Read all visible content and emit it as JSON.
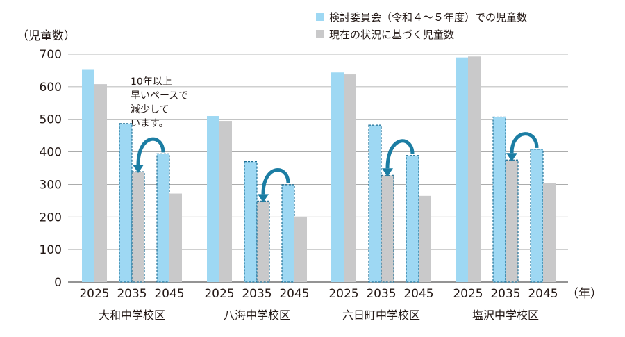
{
  "chart_data": {
    "type": "bar",
    "ylabel": "（児童数）",
    "xunit": "（年）",
    "ylim": [
      0,
      700
    ],
    "yticks": [
      0,
      100,
      200,
      300,
      400,
      500,
      600,
      700
    ],
    "grid": true,
    "legend_position": "top-right",
    "colors": {
      "committee": "#9ed8f3",
      "current": "#c9c9ca",
      "arrow": "#1b7da3",
      "dash": "#1b6e95"
    },
    "series": [
      {
        "name": "検討委員会（令和４～５年度）での児童数",
        "key": "committee"
      },
      {
        "name": "現在の状況に基づく児童数",
        "key": "current"
      }
    ],
    "groups": [
      {
        "name": "大和中学校区",
        "years": [
          "2025",
          "2035",
          "2045"
        ],
        "committee": [
          652,
          487,
          394
        ],
        "current": [
          608,
          339,
          272
        ]
      },
      {
        "name": "八海中学校区",
        "years": [
          "2025",
          "2035",
          "2045"
        ],
        "committee": [
          510,
          370,
          299
        ],
        "current": [
          495,
          249,
          201
        ]
      },
      {
        "name": "六日町中学校区",
        "years": [
          "2025",
          "2035",
          "2045"
        ],
        "committee": [
          644,
          482,
          389
        ],
        "current": [
          638,
          328,
          265
        ]
      },
      {
        "name": "塩沢中学校区",
        "years": [
          "2025",
          "2035",
          "2045"
        ],
        "committee": [
          690,
          507,
          408
        ],
        "current": [
          693,
          375,
          304
        ]
      }
    ],
    "annotation": [
      "10年以上",
      "早いペースで",
      "減少して",
      "います。"
    ]
  }
}
